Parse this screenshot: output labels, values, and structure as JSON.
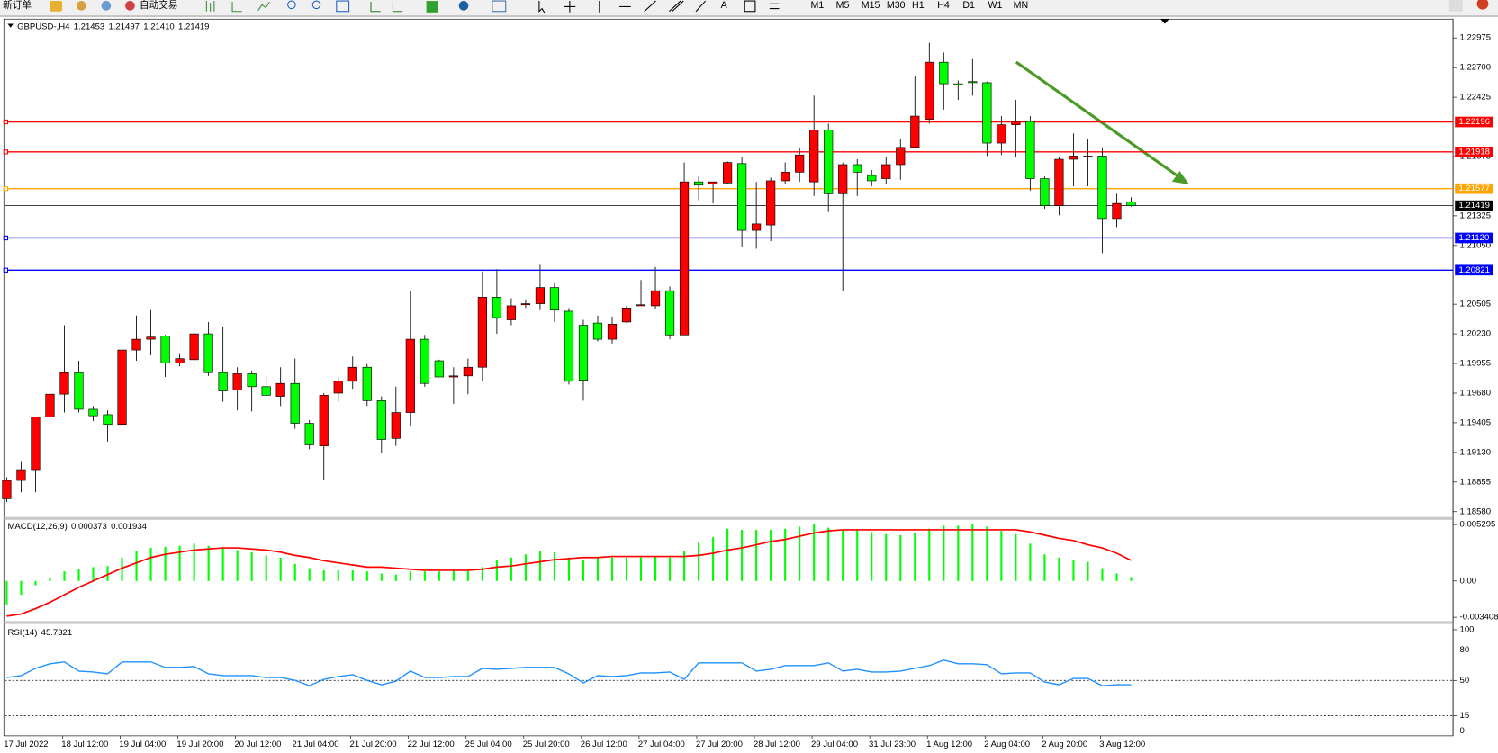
{
  "toolbar": {
    "new_order": "新订单",
    "auto_trading": "自动交易",
    "text_tool": "A",
    "timeframes": [
      "M1",
      "M5",
      "M15",
      "M30",
      "H1",
      "H4",
      "D1",
      "W1",
      "MN"
    ]
  },
  "chart_data": [
    {
      "type": "candlestick",
      "title": "GBPUSD-,H4",
      "header_labels": [
        "1.21453",
        "1.21497",
        "1.21410",
        "1.21419"
      ],
      "bull_color": "#ff0000",
      "bear_color": "#00ff00",
      "x": [
        "17 Jul 2022",
        null,
        null,
        null,
        "18 Jul 12:00",
        null,
        null,
        null,
        "19 Jul 04:00",
        null,
        null,
        null,
        "19 Jul 20:00",
        null,
        null,
        null,
        "20 Jul 12:00",
        null,
        null,
        null,
        "21 Jul 04:00",
        null,
        null,
        null,
        "21 Jul 20:00",
        null,
        null,
        null,
        "22 Jul 12:00",
        null,
        null,
        null,
        "25 Jul 04:00",
        null,
        null,
        null,
        "25 Jul 20:00",
        null,
        null,
        null,
        "26 Jul 12:00",
        null,
        null,
        null,
        "27 Jul 04:00",
        null,
        null,
        null,
        "27 Jul 20:00",
        null,
        null,
        null,
        "28 Jul 12:00",
        null,
        null,
        null,
        "29 Jul 04:00",
        null,
        null,
        null,
        "31 Jul 23:00",
        null,
        null,
        null,
        "1 Aug 12:00",
        null,
        null,
        null,
        "2 Aug 04:00",
        null,
        null,
        null,
        "2 Aug 20:00",
        null,
        null,
        null,
        "3 Aug 12:00",
        null,
        null
      ],
      "open": [
        1.187,
        1.1887,
        1.1897,
        1.1946,
        1.1967,
        1.1987,
        1.1953,
        1.1948,
        1.1939,
        1.2008,
        1.2018,
        1.2021,
        1.1996,
        1.1999,
        1.2023,
        1.1987,
        1.1971,
        1.1986,
        1.1974,
        1.1965,
        1.1977,
        1.194,
        1.1919,
        1.1968,
        1.1979,
        1.1992,
        1.1961,
        1.1926,
        1.195,
        1.2018,
        1.1998,
        1.1983,
        1.1984,
        1.1992,
        1.2057,
        1.2036,
        1.205,
        1.2051,
        1.2066,
        1.2044,
        1.2031,
        1.2033,
        1.2018,
        1.2034,
        1.2049,
        1.2049,
        1.2063,
        1.2022,
        1.2164,
        1.2162,
        1.2163,
        1.2181,
        1.2119,
        1.2124,
        1.2165,
        1.2173,
        1.2164,
        1.2212,
        1.2153,
        1.218,
        1.217,
        1.2167,
        1.218,
        1.2196,
        1.2222,
        1.2275,
        1.2255,
        1.2257,
        1.2256,
        1.22,
        1.2217,
        1.222,
        1.2167,
        1.2142,
        1.2185,
        1.2187,
        1.2188,
        1.213,
        1.21453
      ],
      "high": [
        1.189,
        1.1905,
        1.1946,
        1.1992,
        1.2031,
        1.1998,
        1.1956,
        1.1952,
        1.2008,
        1.204,
        1.2045,
        1.2022,
        1.2005,
        1.2031,
        1.2034,
        1.2029,
        1.1992,
        1.1989,
        1.1983,
        1.1992,
        1.2,
        1.1943,
        1.1968,
        1.1983,
        1.2002,
        1.1995,
        1.1965,
        1.1974,
        1.2063,
        1.2022,
        1.1999,
        1.1992,
        1.2,
        1.2081,
        1.2083,
        1.2056,
        1.2055,
        1.2087,
        1.207,
        1.2047,
        1.2036,
        1.204,
        1.2039,
        1.2049,
        1.2073,
        1.2085,
        1.2067,
        1.2182,
        1.2169,
        1.2164,
        1.2183,
        1.2187,
        1.2164,
        1.2168,
        1.2182,
        1.2196,
        1.2244,
        1.2218,
        1.2182,
        1.2185,
        1.2175,
        1.2187,
        1.2204,
        1.2262,
        1.2293,
        1.2284,
        1.2258,
        1.2278,
        1.2257,
        1.2225,
        1.224,
        1.2225,
        1.2169,
        1.2187,
        1.2209,
        1.2204,
        1.2196,
        1.2153,
        1.21497
      ],
      "low": [
        1.1867,
        1.1876,
        1.1876,
        1.1929,
        1.195,
        1.195,
        1.1942,
        1.1923,
        1.1934,
        1.1998,
        1.2003,
        1.1983,
        1.1993,
        1.1987,
        1.1984,
        1.196,
        1.1952,
        1.1951,
        1.1965,
        1.1956,
        1.1935,
        1.1916,
        1.1887,
        1.196,
        1.1972,
        1.1956,
        1.1913,
        1.1919,
        1.1937,
        1.1974,
        1.1983,
        1.1958,
        1.1967,
        1.1979,
        1.2023,
        1.2031,
        1.2047,
        1.2045,
        1.2034,
        1.1976,
        1.1961,
        1.2016,
        1.2014,
        1.2033,
        1.2049,
        1.2046,
        1.2018,
        1.2022,
        1.2147,
        1.2144,
        1.2162,
        1.2104,
        1.2102,
        1.2109,
        1.2162,
        1.2164,
        1.2151,
        1.2136,
        1.2063,
        1.2151,
        1.216,
        1.2162,
        1.2166,
        1.2196,
        1.2218,
        1.2231,
        1.224,
        1.2244,
        1.2188,
        1.2189,
        1.2187,
        1.2156,
        1.2139,
        1.2133,
        1.216,
        1.216,
        1.2098,
        1.2122,
        1.2141
      ],
      "close": [
        1.1887,
        1.1897,
        1.1946,
        1.1967,
        1.1987,
        1.1953,
        1.1947,
        1.1939,
        1.2008,
        1.2018,
        1.202,
        1.1996,
        1.2,
        1.2023,
        1.1987,
        1.197,
        1.1986,
        1.1974,
        1.1966,
        1.1977,
        1.194,
        1.192,
        1.1966,
        1.1979,
        1.1992,
        1.1961,
        1.1925,
        1.195,
        1.2018,
        1.1977,
        1.1983,
        1.1984,
        1.1992,
        1.2057,
        1.2038,
        1.2049,
        1.2051,
        1.2066,
        1.2045,
        1.1979,
        1.198,
        1.2018,
        1.2032,
        1.2047,
        1.205,
        1.2063,
        1.2022,
        1.2164,
        1.2161,
        1.2164,
        1.2182,
        1.2119,
        1.2125,
        1.2165,
        1.2173,
        1.2189,
        1.2212,
        1.2153,
        1.218,
        1.2173,
        1.2165,
        1.218,
        1.2196,
        1.2225,
        1.2275,
        1.2255,
        1.2254,
        1.2256,
        1.22,
        1.2217,
        1.222,
        1.2167,
        1.2142,
        1.2185,
        1.2188,
        1.2188,
        1.213,
        1.2144,
        1.21419
      ],
      "ylim": [
        1.1854,
        1.2315
      ],
      "yticks": [
        1.22975,
        {
          "value": 1.227,
          "label": "1.22700"
        },
        1.22425,
        1.21875,
        1.21325,
        {
          "value": 1.2105,
          "label": "1.21050"
        },
        1.20505,
        {
          "value": 1.2023,
          "label": "1.20230"
        },
        1.19955,
        {
          "value": 1.1968,
          "label": "1.19680"
        },
        1.19405,
        {
          "value": 1.1913,
          "label": "1.19130"
        },
        1.18855,
        {
          "value": 1.1858,
          "label": "1.18580"
        }
      ],
      "levels": [
        {
          "value": 1.22196,
          "color": "#ff0000"
        },
        {
          "value": 1.21918,
          "color": "#ff0000"
        },
        {
          "value": 1.21577,
          "color": "#ffa500"
        },
        {
          "value": 1.21419,
          "color": "#000000"
        },
        {
          "value": 1.2112,
          "label": "1.21120",
          "color": "#0000ff"
        },
        {
          "value": 1.20821,
          "color": "#0000ff"
        }
      ]
    },
    {
      "type": "macd",
      "title": "MACD(12,26,9)",
      "ylim": [
        -0.00377,
        0.00565
      ],
      "yticks": [
        0.005295,
        {
          "value": 0,
          "label": "0.00"
        },
        -0.003408
      ],
      "series": [
        {
          "color": "#00ff00",
          "values": [
            -0.0022,
            -0.0013,
            -0.0004,
            0.0003,
            0.0009,
            0.0011,
            0.0013,
            0.0014,
            0.0022,
            0.0028,
            0.0031,
            0.0032,
            0.0033,
            0.0035,
            0.0033,
            0.0031,
            0.0029,
            0.0027,
            0.0024,
            0.0022,
            0.0016,
            0.0012,
            0.001,
            0.001,
            0.001,
            0.0009,
            0.0007,
            0.0006,
            0.0009,
            0.0009,
            0.0009,
            0.001,
            0.001,
            0.0013,
            0.002,
            0.0022,
            0.0025,
            0.0028,
            0.0027,
            0.0022,
            0.002,
            0.0022,
            0.0022,
            0.0022,
            0.0022,
            0.0023,
            0.0022,
            0.0028,
            0.0036,
            0.0041,
            0.0049,
            0.0048,
            0.0048,
            0.0048,
            0.0049,
            0.0051,
            0.0053,
            0.005,
            0.0048,
            0.0048,
            0.0046,
            0.0044,
            0.0043,
            0.0045,
            0.0049,
            0.0052,
            0.0052,
            0.0053,
            0.0051,
            0.0047,
            0.0044,
            0.0035,
            0.0025,
            0.0022,
            0.002,
            0.0018,
            0.0012,
            0.0007,
            0.000373
          ]
        },
        {
          "color": "#ff0000",
          "values": [
            -0.0033,
            -0.0031,
            -0.0026,
            -0.002,
            -0.0013,
            -0.0006,
            0,
            0.0006,
            0.0012,
            0.0017,
            0.0022,
            0.0025,
            0.0027,
            0.0029,
            0.003,
            0.0031,
            0.0031,
            0.003,
            0.0029,
            0.0027,
            0.0024,
            0.0022,
            0.0019,
            0.0017,
            0.0015,
            0.0013,
            0.0013,
            0.0012,
            0.0011,
            0.001,
            0.001,
            0.001,
            0.001,
            0.0011,
            0.0013,
            0.0014,
            0.0016,
            0.0018,
            0.002,
            0.0021,
            0.0022,
            0.0022,
            0.0023,
            0.0023,
            0.0023,
            0.0023,
            0.0023,
            0.0023,
            0.0024,
            0.0026,
            0.0029,
            0.0031,
            0.0034,
            0.0037,
            0.0039,
            0.0042,
            0.0045,
            0.0047,
            0.0048,
            0.0048,
            0.0048,
            0.0048,
            0.0048,
            0.0048,
            0.0048,
            0.0048,
            0.0048,
            0.0048,
            0.0048,
            0.0048,
            0.0048,
            0.0046,
            0.0043,
            0.004,
            0.0038,
            0.0034,
            0.0031,
            0.0026,
            0.001934
          ]
        }
      ]
    },
    {
      "type": "line",
      "title": "RSI(14)",
      "color": "#1e90ff",
      "ylim": [
        0,
        100
      ],
      "yticks": [
        100,
        80,
        50,
        15,
        0
      ],
      "levels": [
        80,
        50,
        15
      ],
      "values": [
        52.9,
        54.7,
        61.9,
        66.4,
        68.2,
        59.2,
        58.3,
        56.5,
        68.2,
        68.2,
        68.2,
        62.8,
        62.8,
        63.7,
        56.5,
        54.7,
        54.7,
        54.7,
        52.9,
        52.9,
        50.1,
        44.8,
        51.1,
        53.8,
        55.6,
        50.1,
        45.7,
        49.3,
        59.2,
        52.9,
        52.9,
        53.8,
        53.8,
        61.9,
        61.0,
        61.9,
        62.8,
        62.8,
        62.8,
        56.5,
        47.5,
        54.7,
        53.8,
        54.7,
        57.4,
        57.4,
        58.3,
        51.1,
        67.3,
        67.3,
        67.3,
        67.3,
        59.2,
        61.0,
        64.6,
        64.6,
        64.6,
        67.3,
        59.2,
        61.0,
        58.3,
        58.3,
        59.2,
        61.9,
        64.6,
        70.0,
        66.4,
        66.4,
        65.5,
        56.5,
        57.4,
        57.4,
        48.4,
        45.7,
        52.0,
        52.0,
        44.8,
        45.7,
        45.7321
      ]
    }
  ]
}
